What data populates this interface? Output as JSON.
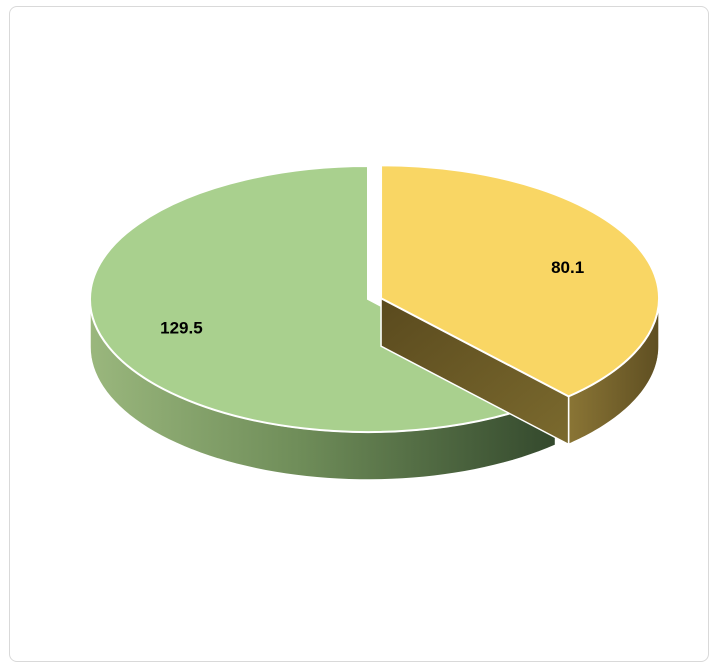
{
  "chart_data": {
    "type": "pie",
    "style": "3d-exploded",
    "title": "",
    "legend": "none",
    "slices": [
      {
        "value": 80.1,
        "label": "80.1",
        "color": "#f9d664",
        "side_color": "#6b5a28",
        "exploded": true
      },
      {
        "value": 129.5,
        "label": "129.5",
        "color": "#a9d08e",
        "side_color": "#425c36",
        "exploded": false
      }
    ]
  }
}
